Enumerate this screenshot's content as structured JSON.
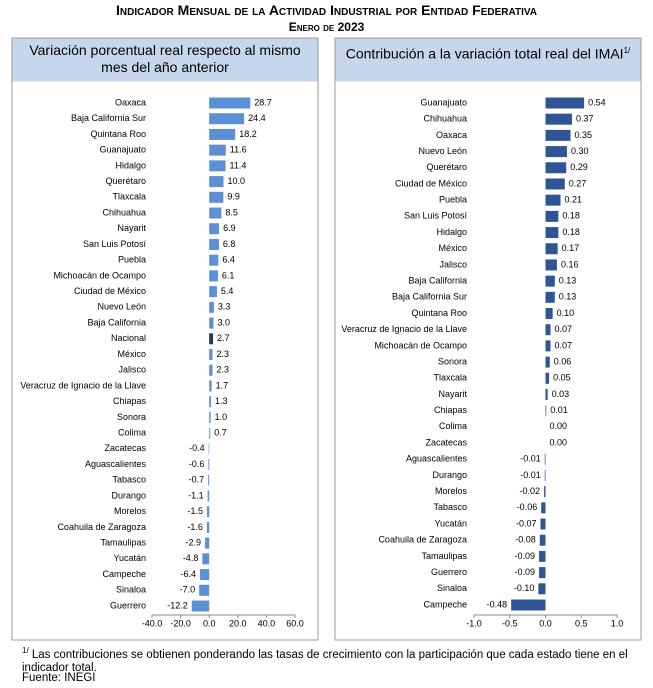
{
  "header": {
    "title": "Indicador Mensual de la Actividad Industrial por Entidad Federativa",
    "subtitle": "Enero de 2023"
  },
  "chart_data": [
    {
      "type": "bar",
      "orientation": "horizontal",
      "title": "Variación porcentual real respecto al mismo mes del año anterior",
      "categories": [
        "Oaxaca",
        "Baja California Sur",
        "Quintana Roo",
        "Guanajuato",
        "Hidalgo",
        "Querétaro",
        "Tlaxcala",
        "Chihuahua",
        "Nayarit",
        "San Luis Potosí",
        "Puebla",
        "Michoacán de Ocampo",
        "Ciudad de México",
        "Nuevo León",
        "Baja California",
        "Nacional",
        "México",
        "Jalisco",
        "Veracruz de Ignacio de la Llave",
        "Chiapas",
        "Sonora",
        "Colima",
        "Zacatecas",
        "Aguascalientes",
        "Tabasco",
        "Durango",
        "Morelos",
        "Coahuila de Zaragoza",
        "Tamaulipas",
        "Yucatán",
        "Campeche",
        "Sinaloa",
        "Guerrero"
      ],
      "values": [
        28.7,
        24.4,
        18.2,
        11.6,
        11.4,
        10.0,
        9.9,
        8.5,
        6.9,
        6.8,
        6.4,
        6.1,
        5.4,
        3.3,
        3.0,
        2.7,
        2.3,
        2.3,
        1.7,
        1.3,
        1.0,
        0.7,
        -0.4,
        -0.6,
        -0.7,
        -1.1,
        -1.5,
        -1.6,
        -2.9,
        -4.8,
        -6.4,
        -7.0,
        -12.2
      ],
      "value_labels": [
        "28.7",
        "24.4",
        "18.2",
        "11.6",
        "11.4",
        "10.0",
        "9.9",
        "8.5",
        "6.9",
        "6.8",
        "6.4",
        "6.1",
        "5.4",
        "3.3",
        "3.0",
        "2.7",
        "2.3",
        "2.3",
        "1.7",
        "1.3",
        "1.0",
        "0.7",
        "-0.4",
        "-0.6",
        "-0.7",
        "-1.1",
        "-1.5",
        "-1.6",
        "-2.9",
        "-4.8",
        "-6.4",
        "-7.0",
        "-12.2"
      ],
      "colors": [
        "#5b8fd6",
        "#5b8fd6",
        "#5b8fd6",
        "#5b8fd6",
        "#5b8fd6",
        "#5b8fd6",
        "#5b8fd6",
        "#5b8fd6",
        "#5b8fd6",
        "#5b8fd6",
        "#5b8fd6",
        "#5b8fd6",
        "#5b8fd6",
        "#5b8fd6",
        "#5b8fd6",
        "#1f3864",
        "#5b8fd6",
        "#5b8fd6",
        "#5b8fd6",
        "#5b8fd6",
        "#5b8fd6",
        "#5b8fd6",
        "#5b8fd6",
        "#5b8fd6",
        "#5b8fd6",
        "#5b8fd6",
        "#5b8fd6",
        "#5b8fd6",
        "#5b8fd6",
        "#5b8fd6",
        "#5b8fd6",
        "#5b8fd6",
        "#5b8fd6"
      ],
      "xlim": [
        -40,
        60
      ],
      "xticks": [
        {
          "value": -40,
          "label": "-40.0"
        },
        {
          "value": -20,
          "label": "-20.0"
        },
        {
          "value": 0,
          "label": "0.0"
        },
        {
          "value": 20,
          "label": "20.0"
        },
        {
          "value": 40,
          "label": "40.0"
        },
        {
          "value": 60,
          "label": "60.0"
        }
      ]
    },
    {
      "type": "bar",
      "orientation": "horizontal",
      "title": "Contribución a la variación total real del IMAI",
      "title_note": "1/",
      "categories": [
        "Guanajuato",
        "Chihuahua",
        "Oaxaca",
        "Nuevo León",
        "Querétaro",
        "Ciudad de México",
        "Puebla",
        "San Luis Potosí",
        "Hidalgo",
        "México",
        "Jalisco",
        "Baja California",
        "Baja California Sur",
        "Quintana Roo",
        "Veracruz de Ignacio de la Llave",
        "Michoacán de Ocampo",
        "Sonora",
        "Tlaxcala",
        "Nayarit",
        "Chiapas",
        "Colima",
        "Zacatecas",
        "Aguascalientes",
        "Durango",
        "Morelos",
        "Tabasco",
        "Yucatán",
        "Coahuila de Zaragoza",
        "Tamaulipas",
        "Guerrero",
        "Sinaloa",
        "Campeche"
      ],
      "values": [
        0.54,
        0.37,
        0.35,
        0.3,
        0.29,
        0.27,
        0.21,
        0.18,
        0.18,
        0.17,
        0.16,
        0.13,
        0.13,
        0.1,
        0.07,
        0.07,
        0.06,
        0.05,
        0.03,
        0.01,
        0.0,
        0.0,
        -0.01,
        -0.01,
        -0.02,
        -0.06,
        -0.07,
        -0.08,
        -0.09,
        -0.09,
        -0.1,
        -0.48
      ],
      "value_labels": [
        "0.54",
        "0.37",
        "0.35",
        "0.30",
        "0.29",
        "0.27",
        "0.21",
        "0.18",
        "0.18",
        "0.17",
        "0.16",
        "0.13",
        "0.13",
        "0.10",
        "0.07",
        "0.07",
        "0.06",
        "0.05",
        "0.03",
        "0.01",
        "0.00",
        "0.00",
        "-0.01",
        "-0.01",
        "-0.02",
        "-0.06",
        "-0.07",
        "-0.08",
        "-0.09",
        "-0.09",
        "-0.10",
        "-0.48"
      ],
      "color": "#2f5597",
      "xlim": [
        -1,
        1
      ],
      "xticks": [
        {
          "value": -1,
          "label": "-1.0"
        },
        {
          "value": -0.5,
          "label": "-0.5"
        },
        {
          "value": 0,
          "label": "0.0"
        },
        {
          "value": 0.5,
          "label": "0.5"
        },
        {
          "value": 1,
          "label": "1.0"
        }
      ]
    }
  ],
  "footnotes": {
    "marker": "1/",
    "text": "Las contribuciones se obtienen ponderando las tasas de crecimiento con la participación que cada estado tiene en el indicador total.",
    "source": "Fuente: INEGI"
  }
}
